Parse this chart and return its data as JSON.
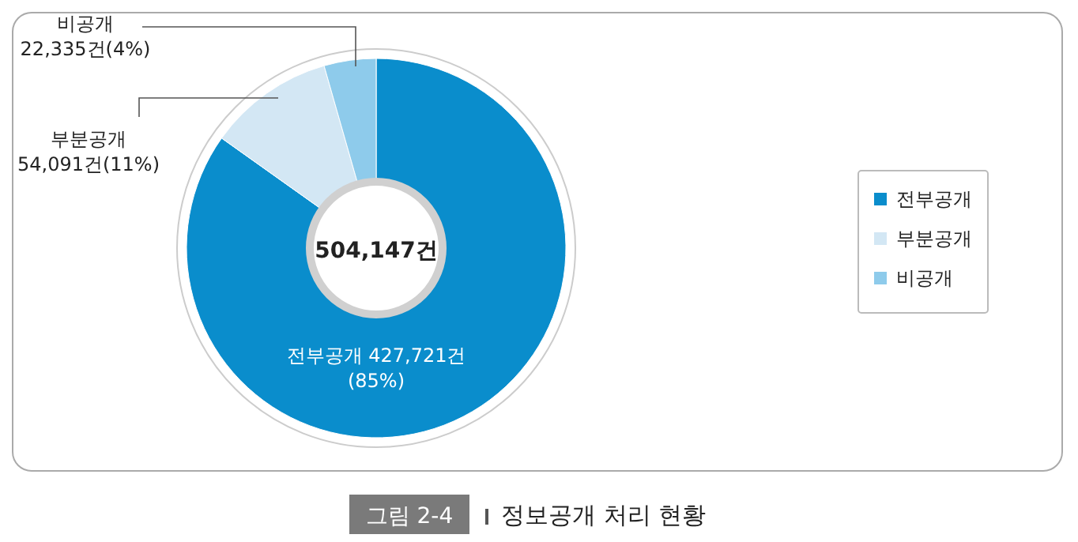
{
  "chart_data": {
    "type": "donut",
    "title": "정보공개 처리 현황",
    "categories": [
      "전부공개",
      "부분공개",
      "비공개"
    ],
    "values": [
      427721,
      54091,
      22335
    ],
    "colors": [
      "#0a8dcc",
      "#d3e7f4",
      "#8ecbeb"
    ],
    "value_labels": [
      "전부공개 427,721건\n(85%)",
      "부분공개\n54,091건(11%)",
      "비공개\n22,335건(4%)"
    ],
    "annotations": [
      "504,147건",
      "그림 2-4"
    ],
    "legend": "right"
  }
}
